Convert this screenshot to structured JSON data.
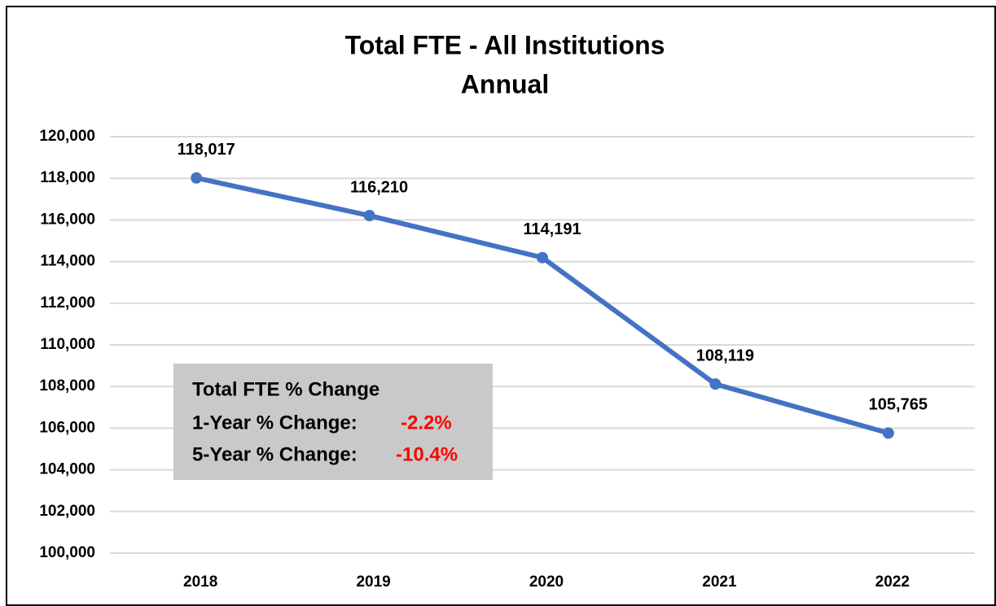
{
  "chart_data": {
    "type": "line",
    "title": "Total FTE - All Institutions",
    "subtitle": "Annual",
    "categories": [
      "2018",
      "2019",
      "2020",
      "2021",
      "2022"
    ],
    "values": [
      118017,
      116210,
      114191,
      108119,
      105765
    ],
    "value_labels": [
      "118,017",
      "116,210",
      "114,191",
      "108,119",
      "105,765"
    ],
    "color": "#4472c4",
    "ylim": [
      100000,
      120000
    ],
    "yticks": [
      {
        "value": 100000,
        "label": "100,000"
      },
      {
        "value": 102000,
        "label": "102,000"
      },
      {
        "value": 104000,
        "label": "104,000"
      },
      {
        "value": 106000,
        "label": "106,000"
      },
      {
        "value": 108000,
        "label": "108,000"
      },
      {
        "value": 110000,
        "label": "110,000"
      },
      {
        "value": 112000,
        "label": "112,000"
      },
      {
        "value": 114000,
        "label": "114,000"
      },
      {
        "value": 116000,
        "label": "116,000"
      },
      {
        "value": 118000,
        "label": "118,000"
      },
      {
        "value": 120000,
        "label": "120,000"
      }
    ],
    "grid": true,
    "annotation": {
      "title": "Total FTE % Change",
      "rows": [
        {
          "label": "1-Year % Change:",
          "value": "-2.2%"
        },
        {
          "label": "5-Year % Change:",
          "value": "-10.4%"
        }
      ]
    }
  }
}
